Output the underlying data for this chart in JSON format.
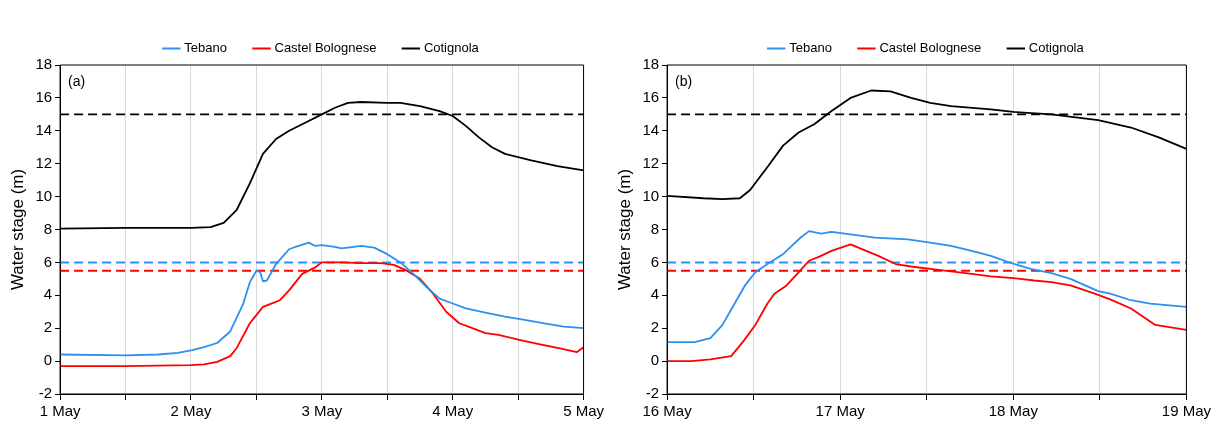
{
  "chart_data": [
    {
      "type": "line",
      "ylabel": "Water stage (m)",
      "annotations": [
        "(a)"
      ],
      "xlim": [
        "--05-01",
        "--05-05"
      ],
      "xticks": [
        {
          "value": "--05-01",
          "label": "1 May"
        },
        {
          "value": "--05-01T12:00",
          "label": null
        },
        {
          "value": "--05-02",
          "label": "2 May"
        },
        {
          "value": "--05-02T12:00",
          "label": null
        },
        {
          "value": "--05-03",
          "label": "3 May"
        },
        {
          "value": "--05-03T12:00",
          "label": null
        },
        {
          "value": "--05-04",
          "label": "4 May"
        },
        {
          "value": "--05-04T12:00",
          "label": null
        },
        {
          "value": "--05-05",
          "label": "5 May"
        }
      ],
      "ylim": [
        -2,
        18
      ],
      "yticks": [
        -2,
        0,
        2,
        4,
        6,
        8,
        10,
        12,
        14,
        16,
        18
      ],
      "grid": "x",
      "legend": "top",
      "marker": "none",
      "line_style": "solid",
      "ref_lines": [
        {
          "axis": "y",
          "value": 15,
          "color": "#000000",
          "line_style": "dashed"
        },
        {
          "axis": "y",
          "value": 6,
          "color": "#2f8ff0",
          "line_style": "dashed"
        },
        {
          "axis": "y",
          "value": 5.5,
          "color": "#ff0000",
          "line_style": "dashed"
        }
      ],
      "series": [
        {
          "name": "Tebano",
          "color": "#2f8ff0",
          "x": [
            "--05-01T00:00",
            "--05-01T12:00",
            "--05-01T18:00",
            "--05-01T21:36",
            "--05-02T00:00",
            "--05-02T02:24",
            "--05-02T04:48",
            "--05-02T07:12",
            "--05-02T09:36",
            "--05-02T10:48",
            "--05-02T12:00",
            "--05-02T12:43",
            "--05-02T13:12",
            "--05-02T13:55",
            "--05-02T15:36",
            "--05-02T18:00",
            "--05-02T19:12",
            "--05-02T21:36",
            "--05-02T22:48",
            "--05-03T00:00",
            "--05-03T02:24",
            "--05-03T03:36",
            "--05-03T04:48",
            "--05-03T07:12",
            "--05-03T09:36",
            "--05-03T12:00",
            "--05-03T14:24",
            "--05-03T16:48",
            "--05-03T19:12",
            "--05-03T21:36",
            "--05-04T00:00",
            "--05-04T02:24",
            "--05-04T06:00",
            "--05-04T09:36",
            "--05-04T13:12",
            "--05-04T16:48",
            "--05-04T20:24",
            "--05-05T00:00"
          ],
          "values": [
            0.4,
            0.35,
            0.4,
            0.5,
            0.65,
            0.85,
            1.1,
            1.8,
            3.5,
            4.8,
            5.5,
            5.4,
            4.85,
            4.9,
            5.9,
            6.8,
            6.95,
            7.2,
            7,
            7.05,
            6.95,
            6.85,
            6.9,
            7,
            6.9,
            6.5,
            6,
            5.3,
            4.5,
            3.8,
            3.5,
            3.2,
            2.95,
            2.7,
            2.5,
            2.3,
            2.1,
            2
          ]
        },
        {
          "name": "Castel Bolognese",
          "color": "#ff0000",
          "x": [
            "--05-01T00:00",
            "--05-01T12:00",
            "--05-02T00:00",
            "--05-02T02:24",
            "--05-02T04:48",
            "--05-02T07:12",
            "--05-02T08:24",
            "--05-02T10:48",
            "--05-02T13:12",
            "--05-02T14:24",
            "--05-02T16:19",
            "--05-02T18:00",
            "--05-02T20:24",
            "--05-02T22:48",
            "--05-03T00:00",
            "--05-03T03:36",
            "--05-03T07:12",
            "--05-03T10:48",
            "--05-03T13:12",
            "--05-03T15:36",
            "--05-03T18:00",
            "--05-03T20:24",
            "--05-03T22:48",
            "--05-04T01:12",
            "--05-04T03:36",
            "--05-04T06:00",
            "--05-04T08:24",
            "--05-04T12:00",
            "--05-04T15:36",
            "--05-04T19:12",
            "--05-04T22:48",
            "--05-05T00:00"
          ],
          "values": [
            -0.3,
            -0.3,
            -0.25,
            -0.2,
            -0.05,
            0.3,
            0.8,
            2.3,
            3.3,
            3.45,
            3.7,
            4.3,
            5.3,
            5.7,
            6,
            6,
            5.95,
            5.95,
            5.85,
            5.5,
            5,
            4.1,
            3,
            2.3,
            2,
            1.7,
            1.6,
            1.3,
            1.05,
            0.8,
            0.55,
            0.85
          ]
        },
        {
          "name": "Cotignola",
          "color": "#000000",
          "x": [
            "--05-01T00:00",
            "--05-01T12:00",
            "--05-02T00:00",
            "--05-02T03:36",
            "--05-02T06:00",
            "--05-02T08:24",
            "--05-02T10:48",
            "--05-02T13:12",
            "--05-02T15:36",
            "--05-02T18:00",
            "--05-02T20:24",
            "--05-03T00:00",
            "--05-03T02:24",
            "--05-03T04:48",
            "--05-03T07:12",
            "--05-03T12:00",
            "--05-03T14:24",
            "--05-03T18:00",
            "--05-03T21:36",
            "--05-04T00:00",
            "--05-04T02:24",
            "--05-04T04:48",
            "--05-04T07:12",
            "--05-04T09:36",
            "--05-04T14:24",
            "--05-04T19:12",
            "--05-05T00:00"
          ],
          "values": [
            8.05,
            8.1,
            8.1,
            8.15,
            8.4,
            9.2,
            10.8,
            12.6,
            13.5,
            14,
            14.4,
            15,
            15.4,
            15.7,
            15.75,
            15.7,
            15.7,
            15.5,
            15.2,
            14.9,
            14.3,
            13.6,
            13,
            12.6,
            12.2,
            11.85,
            11.6
          ]
        }
      ]
    },
    {
      "type": "line",
      "ylabel": "Water stage (m)",
      "annotations": [
        "(b)"
      ],
      "xlim": [
        "--05-16",
        "--05-19"
      ],
      "xticks": [
        {
          "value": "--05-16",
          "label": "16 May"
        },
        {
          "value": "--05-16T12:00",
          "label": null
        },
        {
          "value": "--05-17",
          "label": "17 May"
        },
        {
          "value": "--05-17T12:00",
          "label": null
        },
        {
          "value": "--05-18",
          "label": "18 May"
        },
        {
          "value": "--05-18T12:00",
          "label": null
        },
        {
          "value": "--05-19",
          "label": "19 May"
        }
      ],
      "ylim": [
        -2,
        18
      ],
      "yticks": [
        -2,
        0,
        2,
        4,
        6,
        8,
        10,
        12,
        14,
        16,
        18
      ],
      "grid": "x",
      "legend": "top",
      "marker": "none",
      "line_style": "solid",
      "ref_lines": [
        {
          "axis": "y",
          "value": 15,
          "color": "#000000",
          "line_style": "dashed"
        },
        {
          "axis": "y",
          "value": 6,
          "color": "#2f8ff0",
          "line_style": "dashed"
        },
        {
          "axis": "y",
          "value": 5.5,
          "color": "#ff0000",
          "line_style": "dashed"
        }
      ],
      "series": [
        {
          "name": "Tebano",
          "color": "#2f8ff0",
          "x": [
            "--05-16T00:00",
            "--05-16T03:50",
            "--05-16T06:00",
            "--05-16T07:41",
            "--05-16T09:22",
            "--05-16T10:48",
            "--05-16T12:14",
            "--05-16T13:55",
            "--05-16T16:05",
            "--05-16T17:17",
            "--05-16T18:29",
            "--05-16T19:41",
            "--05-16T21:22",
            "--05-16T22:48",
            "--05-17T01:26",
            "--05-17T04:48",
            "--05-17T09:22",
            "--05-17T12:29",
            "--05-17T15:22",
            "--05-17T18:14",
            "--05-17T20:53",
            "--05-17T23:46",
            "--05-18T02:24",
            "--05-18T05:17",
            "--05-18T07:55",
            "--05-18T11:46",
            "--05-18T13:26",
            "--05-18T16:19",
            "--05-18T18:58",
            "--05-19T00:00"
          ],
          "values": [
            1.15,
            1.15,
            1.4,
            2.2,
            3.5,
            4.6,
            5.4,
            5.9,
            6.5,
            7,
            7.5,
            7.9,
            7.75,
            7.85,
            7.7,
            7.5,
            7.4,
            7.2,
            7,
            6.7,
            6.4,
            5.95,
            5.6,
            5.35,
            5,
            4.25,
            4.1,
            3.7,
            3.5,
            3.3
          ]
        },
        {
          "name": "Castel Bolognese",
          "color": "#ff0000",
          "x": [
            "--05-16T00:00",
            "--05-16T03:22",
            "--05-16T06:00",
            "--05-16T08:53",
            "--05-16T10:34",
            "--05-16T12:14",
            "--05-16T13:55",
            "--05-16T14:53",
            "--05-16T16:34",
            "--05-16T18:14",
            "--05-16T19:41",
            "--05-16T21:07",
            "--05-16T22:48",
            "--05-17T01:26",
            "--05-17T03:36",
            "--05-17T05:17",
            "--05-17T07:41",
            "--05-17T09:50",
            "--05-17T12:29",
            "--05-17T15:22",
            "--05-17T18:14",
            "--05-17T20:53",
            "--05-18T00:00",
            "--05-18T02:53",
            "--05-18T05:17",
            "--05-18T07:55",
            "--05-18T11:17",
            "--05-18T13:26",
            "--05-18T16:19",
            "--05-18T19:41",
            "--05-18T21:50",
            "--05-19T00:00"
          ],
          "values": [
            0,
            0,
            0.1,
            0.3,
            1.2,
            2.2,
            3.5,
            4.1,
            4.6,
            5.4,
            6.1,
            6.35,
            6.7,
            7.1,
            6.7,
            6.4,
            5.9,
            5.75,
            5.6,
            5.45,
            5.3,
            5.15,
            5.05,
            4.9,
            4.8,
            4.6,
            4.1,
            3.75,
            3.2,
            2.2,
            2.05,
            1.9
          ]
        },
        {
          "name": "Cotignola",
          "color": "#000000",
          "x": [
            "--05-16T00:00",
            "--05-16T05:02",
            "--05-16T07:41",
            "--05-16T10:05",
            "--05-16T11:31",
            "--05-16T13:55",
            "--05-16T16:05",
            "--05-16T18:14",
            "--05-16T20:24",
            "--05-16T22:48",
            "--05-17T01:26",
            "--05-17T04:19",
            "--05-17T06:58",
            "--05-17T09:50",
            "--05-17T12:29",
            "--05-17T15:22",
            "--05-17T20:53",
            "--05-18T00:00",
            "--05-18T05:17",
            "--05-18T11:46",
            "--05-18T16:19",
            "--05-18T20:10",
            "--05-19T00:00"
          ],
          "values": [
            10.05,
            9.9,
            9.85,
            9.9,
            10.4,
            11.8,
            13.1,
            13.9,
            14.4,
            15.2,
            16,
            16.45,
            16.4,
            16,
            15.7,
            15.5,
            15.3,
            15.15,
            15,
            14.65,
            14.2,
            13.6,
            12.9
          ]
        }
      ]
    }
  ]
}
